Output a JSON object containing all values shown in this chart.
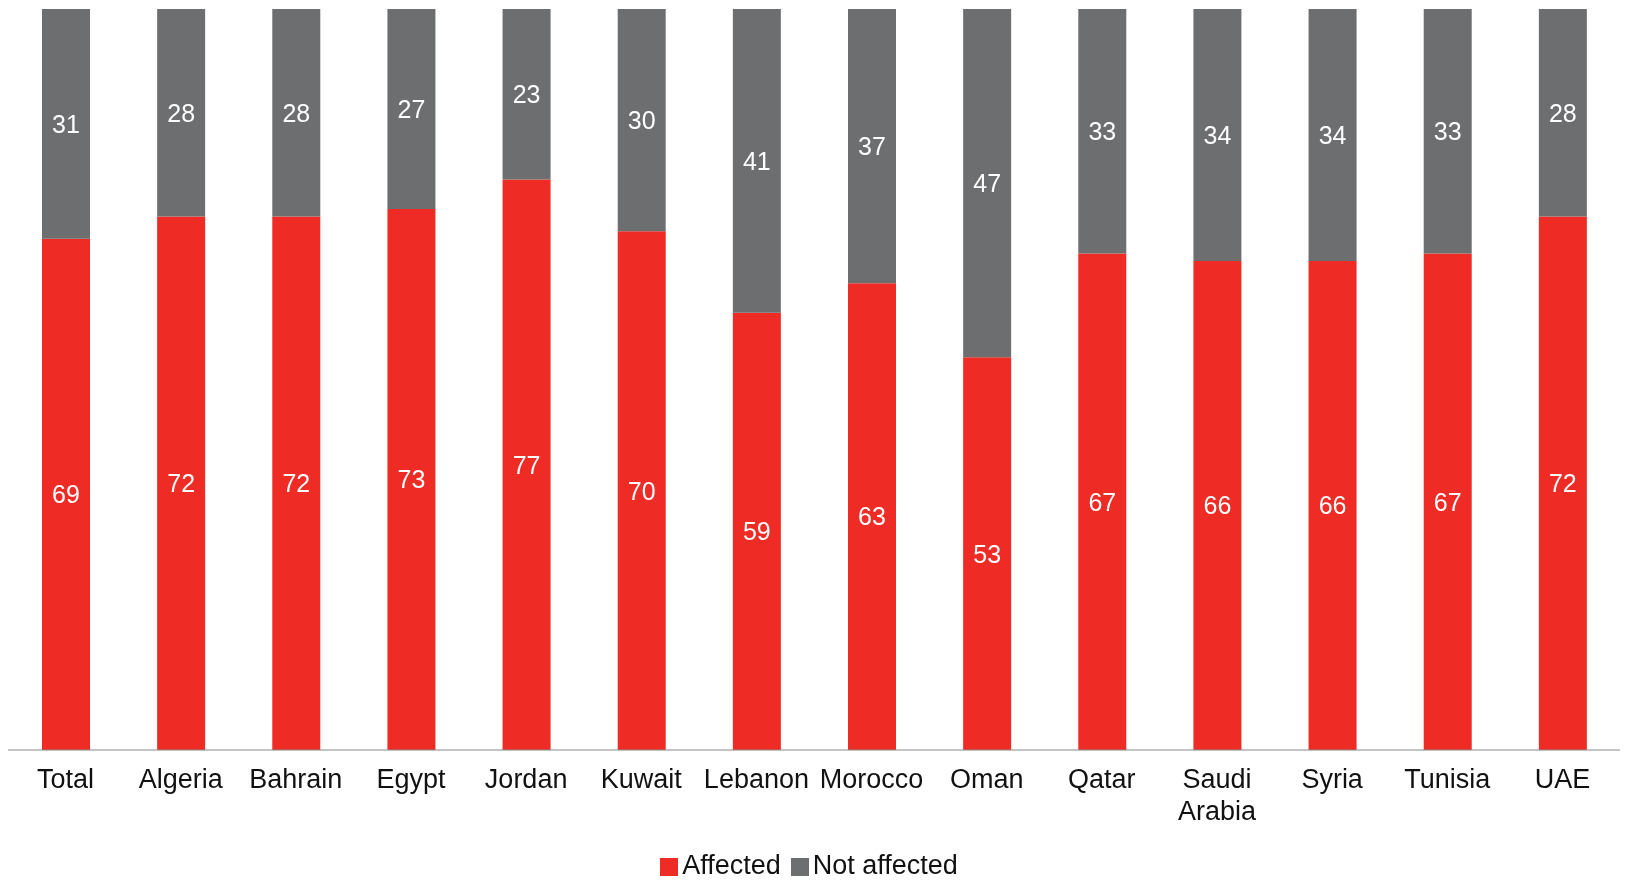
{
  "chart_data": {
    "type": "bar",
    "stacked": true,
    "data_labels": true,
    "legend": "bottom",
    "tick_labels": "x",
    "grid": false,
    "categories": [
      "Total",
      "Algeria",
      "Bahrain",
      "Egypt",
      "Jordan",
      "Kuwait",
      "Lebanon",
      "Morocco",
      "Oman",
      "Qatar",
      "Saudi Arabia",
      "Syria",
      "Tunisia",
      "UAE"
    ],
    "series": [
      {
        "name": "Affected",
        "color": "#ee2b24",
        "values": [
          69,
          72,
          72,
          73,
          77,
          70,
          59,
          63,
          53,
          67,
          66,
          66,
          67,
          72
        ]
      },
      {
        "name": "Not affected",
        "color": "#6d6e70",
        "values": [
          31,
          28,
          28,
          27,
          23,
          30,
          41,
          37,
          47,
          33,
          34,
          34,
          33,
          28
        ]
      }
    ]
  }
}
